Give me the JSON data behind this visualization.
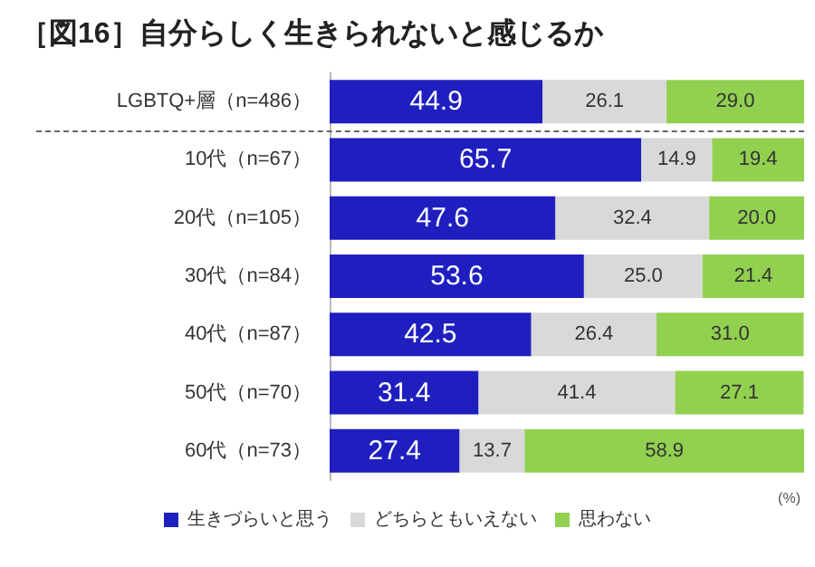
{
  "chart_data": {
    "type": "bar",
    "title": "［図16］自分らしく生きられないと感じるか",
    "orientation": "horizontal",
    "stacked": true,
    "legend": "bottom",
    "xlim": [
      0,
      100
    ],
    "tick_labels": "y",
    "categories": [
      "LGBTQ+層（n=486）",
      "10代（n=67）",
      "20代（n=105）",
      "30代（n=84）",
      "40代（n=87）",
      "50代（n=70）",
      "60代（n=73）"
    ],
    "series": [
      {
        "name": "生きづらいと思う",
        "color": "#1f1fbf",
        "values": [
          44.9,
          65.7,
          47.6,
          53.6,
          42.5,
          31.4,
          27.4
        ],
        "value_labels": [
          "44.9",
          "65.7",
          "47.6",
          "53.6",
          "42.5",
          "31.4",
          "27.4"
        ]
      },
      {
        "name": "どちらともいえない",
        "color": "#d9d9d9",
        "values": [
          26.1,
          14.9,
          32.4,
          25.0,
          26.4,
          41.4,
          13.7
        ],
        "value_labels": [
          "26.1",
          "14.9",
          "32.4",
          "25.0",
          "26.4",
          "41.4",
          "13.7"
        ]
      },
      {
        "name": "思わない",
        "color": "#92d050",
        "values": [
          29.0,
          19.4,
          20.0,
          21.4,
          31.0,
          27.1,
          58.9
        ],
        "value_labels": [
          "29.0",
          "19.4",
          "20.0",
          "21.4",
          "31.0",
          "27.1",
          "58.9"
        ]
      }
    ],
    "annotations": [
      "(%)"
    ]
  }
}
